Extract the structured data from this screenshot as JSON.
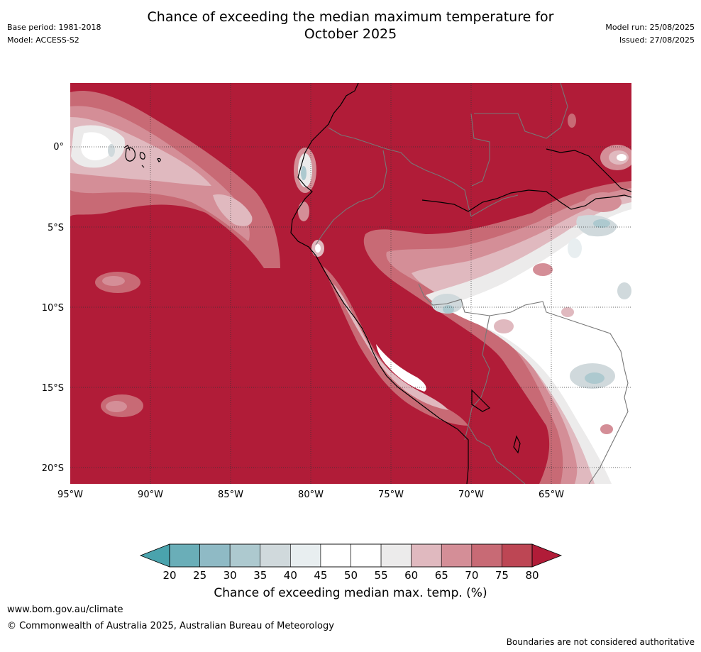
{
  "header": {
    "title_line1": "Chance of exceeding the median maximum temperature for",
    "title_line2": "October 2025",
    "base_period": "Base period: 1981-2018",
    "model": "Model: ACCESS-S2",
    "model_run": "Model run: 25/08/2025",
    "issued": "Issued: 27/08/2025"
  },
  "map": {
    "lat_labels": [
      "0°",
      "5°S",
      "10°S",
      "15°S",
      "20°S"
    ],
    "lon_labels": [
      "95°W",
      "90°W",
      "85°W",
      "80°W",
      "75°W",
      "70°W",
      "65°W"
    ],
    "background_color": "#b11c38"
  },
  "colorbar": {
    "ticks": [
      "20",
      "25",
      "30",
      "35",
      "40",
      "45",
      "50",
      "55",
      "60",
      "65",
      "70",
      "75",
      "80"
    ],
    "colors": [
      "#6aaeb8",
      "#8fbac5",
      "#adc9cf",
      "#d0d9dc",
      "#e8eef0",
      "#ffffff",
      "#ffffff",
      "#ecebeb",
      "#e0b9bf",
      "#d48e97",
      "#c86a75",
      "#bd4654"
    ],
    "under_color": "#4aa3ad",
    "over_color": "#b11c38",
    "title": "Chance of exceeding median max. temp. (%)"
  },
  "footer": {
    "url": "www.bom.gov.au/climate",
    "copyright": "© Commonwealth of Australia 2025, Australian Bureau of Meteorology",
    "disclaimer": "Boundaries are not considered authoritative"
  }
}
